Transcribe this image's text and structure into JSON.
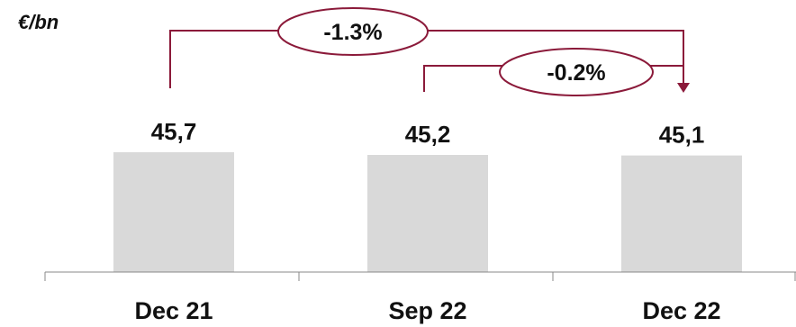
{
  "chart_data": {
    "type": "bar",
    "unit_label": "€/bn",
    "categories": [
      "Dec 21",
      "Sep 22",
      "Dec 22"
    ],
    "values": [
      45.7,
      45.2,
      45.1
    ],
    "value_labels": [
      "45,7",
      "45,2",
      "45,1"
    ],
    "annotations": [
      {
        "from": "Dec 21",
        "to": "Dec 22",
        "label": "-1.3%"
      },
      {
        "from": "Sep 22",
        "to": "Dec 22",
        "label": "-0.2%"
      }
    ],
    "colors": {
      "bar": "#d9d9d9",
      "annotation": "#8b1a3a",
      "axis": "#888888"
    }
  }
}
